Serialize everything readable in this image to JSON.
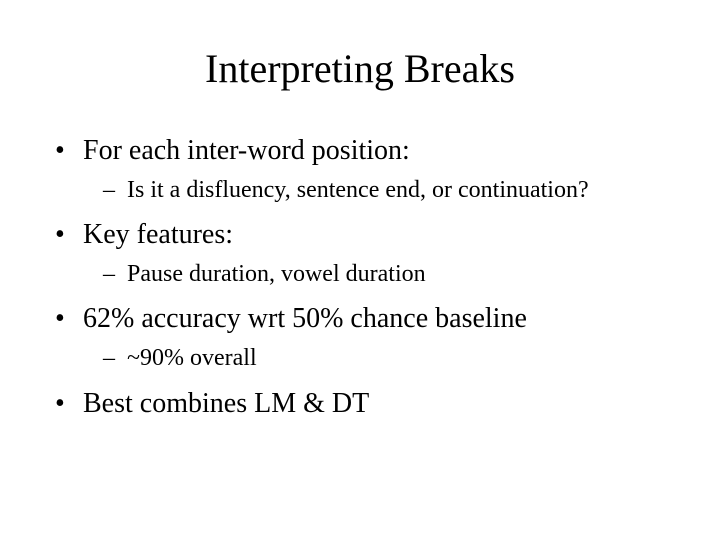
{
  "title": "Interpreting Breaks",
  "bullets": [
    {
      "text": "For each inter-word position:",
      "sub": [
        {
          "text": "Is it a disfluency, sentence end, or continuation?"
        }
      ]
    },
    {
      "text": "Key features:",
      "sub": [
        {
          "text": "Pause duration, vowel duration"
        }
      ]
    },
    {
      "text": "62% accuracy wrt 50% chance baseline",
      "sub": [
        {
          "text": "~90% overall"
        }
      ]
    },
    {
      "text": "Best combines LM & DT",
      "sub": []
    }
  ],
  "styling": {
    "background_color": "#ffffff",
    "text_color": "#000000",
    "font_family": "Times New Roman",
    "title_fontsize": 40,
    "level1_fontsize": 28,
    "level2_fontsize": 24,
    "slide_width": 720,
    "slide_height": 540
  }
}
